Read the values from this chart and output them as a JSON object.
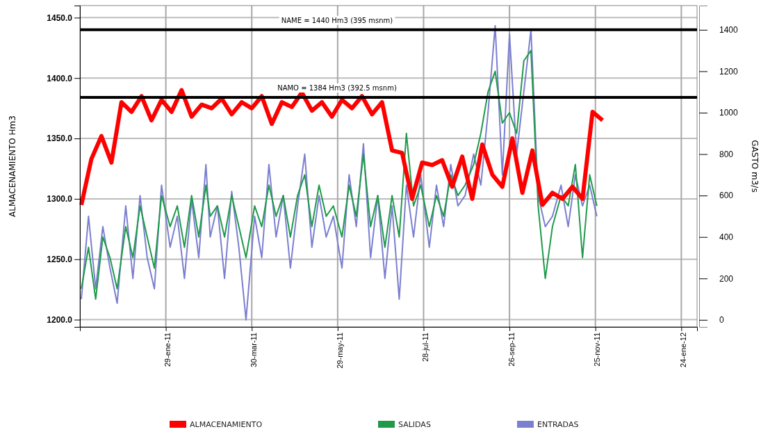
{
  "chart_data": {
    "type": "line",
    "ylabel": "ALMACENAMIENTO  Hm3",
    "y2label": "GASTO m3/s",
    "xlim": [
      "2010-11-30",
      "2012-02-04"
    ],
    "xticks": [
      {
        "value": "2011-01-29",
        "label": "29-ene-11"
      },
      {
        "value": "2011-03-30",
        "label": "30-mar-11"
      },
      {
        "value": "2011-05-29",
        "label": "29-may-11"
      },
      {
        "value": "2011-07-28",
        "label": "28-jul-11"
      },
      {
        "value": "2011-09-26",
        "label": "26-sep-11"
      },
      {
        "value": "2011-11-25",
        "label": "25-nov-11"
      },
      {
        "value": "2012-01-24",
        "label": "24-ene-12"
      }
    ],
    "ylim": [
      1194,
      1460
    ],
    "yticks": [
      {
        "value": 1200,
        "label": "1200.0"
      },
      {
        "value": 1250,
        "label": "1250.0"
      },
      {
        "value": 1300,
        "label": "1300.0"
      },
      {
        "value": 1350,
        "label": "1350.0"
      },
      {
        "value": 1400,
        "label": "1400.0"
      },
      {
        "value": 1450,
        "label": "1450.0"
      }
    ],
    "y2lim": [
      -34,
      1517
    ],
    "y2ticks": [
      0,
      200,
      400,
      600,
      800,
      1000,
      1200,
      1400
    ],
    "grid": true,
    "legend": "bottom",
    "ref_lines": [
      {
        "axis": "y",
        "value": 1440,
        "label": "NAME = 1440 Hm3  (395 msnm)",
        "color": "#000000"
      },
      {
        "axis": "y",
        "value": 1384,
        "label": "NAMO = 1384 Hm3  (392.5 msnm)",
        "color": "#000000"
      }
    ],
    "x": [
      "2010-12-01",
      "2010-12-06",
      "2010-12-11",
      "2010-12-16",
      "2010-12-21",
      "2010-12-26",
      "2011-01-01",
      "2011-01-06",
      "2011-01-11",
      "2011-01-16",
      "2011-01-21",
      "2011-01-26",
      "2011-02-01",
      "2011-02-06",
      "2011-02-11",
      "2011-02-16",
      "2011-02-21",
      "2011-02-26",
      "2011-03-01",
      "2011-03-06",
      "2011-03-11",
      "2011-03-16",
      "2011-03-21",
      "2011-03-26",
      "2011-04-01",
      "2011-04-06",
      "2011-04-11",
      "2011-04-16",
      "2011-04-21",
      "2011-04-26",
      "2011-05-01",
      "2011-05-06",
      "2011-05-11",
      "2011-05-16",
      "2011-05-21",
      "2011-05-26",
      "2011-06-01",
      "2011-06-06",
      "2011-06-11",
      "2011-06-16",
      "2011-06-21",
      "2011-06-26",
      "2011-07-01",
      "2011-07-06",
      "2011-07-11",
      "2011-07-16",
      "2011-07-21",
      "2011-07-26",
      "2011-08-01",
      "2011-08-06",
      "2011-08-11",
      "2011-08-16",
      "2011-08-21",
      "2011-08-26",
      "2011-09-01",
      "2011-09-06",
      "2011-09-11",
      "2011-09-16",
      "2011-09-21",
      "2011-09-26",
      "2011-10-01",
      "2011-10-06",
      "2011-10-11",
      "2011-10-16",
      "2011-10-21",
      "2011-10-26",
      "2011-11-01",
      "2011-11-06",
      "2011-11-11",
      "2011-11-16",
      "2011-11-21",
      "2011-11-26"
    ],
    "series": [
      {
        "name": "ALMACENAMIENTO",
        "color": "#ff0000",
        "x": [
          "2010-12-01",
          "2010-12-08",
          "2010-12-15",
          "2010-12-22",
          "2010-12-29",
          "2011-01-05",
          "2011-01-12",
          "2011-01-19",
          "2011-01-26",
          "2011-02-02",
          "2011-02-09",
          "2011-02-16",
          "2011-02-23",
          "2011-03-02",
          "2011-03-09",
          "2011-03-16",
          "2011-03-23",
          "2011-03-30",
          "2011-04-06",
          "2011-04-13",
          "2011-04-20",
          "2011-04-27",
          "2011-05-04",
          "2011-05-11",
          "2011-05-18",
          "2011-05-25",
          "2011-06-01",
          "2011-06-08",
          "2011-06-15",
          "2011-06-22",
          "2011-06-29",
          "2011-07-06",
          "2011-07-13",
          "2011-07-20",
          "2011-07-27",
          "2011-08-03",
          "2011-08-10",
          "2011-08-17",
          "2011-08-24",
          "2011-08-31",
          "2011-09-07",
          "2011-09-14",
          "2011-09-21",
          "2011-09-28",
          "2011-10-05",
          "2011-10-12",
          "2011-10-19",
          "2011-10-26",
          "2011-11-02",
          "2011-11-09",
          "2011-11-16",
          "2011-11-23",
          "2011-11-30"
        ],
        "values": [
          1295,
          1333,
          1352,
          1330,
          1380,
          1372,
          1385,
          1365,
          1382,
          1372,
          1390,
          1368,
          1378,
          1375,
          1383,
          1370,
          1380,
          1375,
          1385,
          1362,
          1380,
          1376,
          1388,
          1373,
          1380,
          1368,
          1382,
          1375,
          1385,
          1370,
          1380,
          1340,
          1338,
          1300,
          1330,
          1328,
          1332,
          1310,
          1335,
          1300,
          1345,
          1320,
          1310,
          1350,
          1305,
          1340,
          1295,
          1305,
          1300,
          1310,
          1300,
          1372,
          1365
        ]
      },
      {
        "name": "SALIDAS",
        "color": "#1f9a4a",
        "axis": "y2",
        "values": [
          150,
          350,
          100,
          400,
          300,
          150,
          450,
          300,
          550,
          400,
          250,
          600,
          450,
          550,
          350,
          600,
          400,
          650,
          500,
          550,
          400,
          600,
          450,
          300,
          550,
          450,
          650,
          500,
          600,
          400,
          600,
          700,
          450,
          650,
          500,
          550,
          400,
          650,
          500,
          800,
          450,
          600,
          350,
          600,
          400,
          900,
          550,
          650,
          450,
          600,
          500,
          700,
          600,
          650,
          750,
          900,
          1100,
          1200,
          950,
          1000,
          900,
          1250,
          1300,
          550,
          200,
          450,
          600,
          550,
          750,
          300,
          700,
          550
        ]
      },
      {
        "name": "ENTRADAS",
        "color": "#7b7fcf",
        "axis": "y2",
        "values": [
          100,
          500,
          150,
          450,
          250,
          80,
          550,
          200,
          600,
          300,
          150,
          650,
          350,
          500,
          200,
          580,
          300,
          750,
          400,
          550,
          200,
          620,
          350,
          0,
          500,
          300,
          750,
          400,
          600,
          250,
          550,
          800,
          350,
          600,
          400,
          500,
          250,
          700,
          450,
          850,
          300,
          600,
          200,
          550,
          100,
          650,
          400,
          700,
          350,
          650,
          450,
          750,
          550,
          600,
          800,
          650,
          1000,
          1420,
          700,
          1380,
          800,
          1100,
          1400,
          600,
          450,
          500,
          650,
          450,
          700,
          550,
          650,
          500
        ]
      }
    ]
  }
}
